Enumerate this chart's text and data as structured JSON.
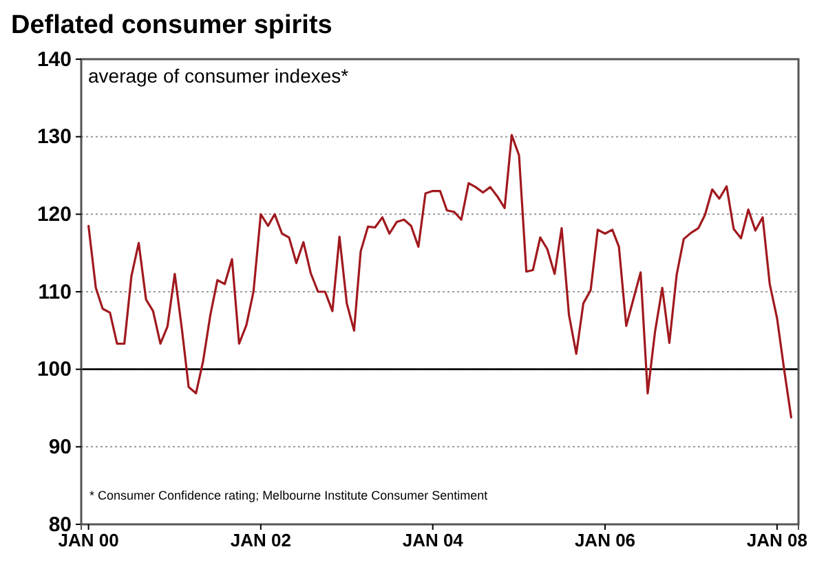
{
  "chart_data": {
    "type": "line",
    "title": "Deflated consumer spirits",
    "subtitle": "average of consumer indexes*",
    "annotations": [
      "* Consumer Confidence rating; Melbourne Institute Consumer Sentiment"
    ],
    "x": [
      "2000-01",
      "2000-02",
      "2000-03",
      "2000-04",
      "2000-05",
      "2000-06",
      "2000-07",
      "2000-08",
      "2000-09",
      "2000-10",
      "2000-11",
      "2000-12",
      "2001-01",
      "2001-02",
      "2001-03",
      "2001-04",
      "2001-05",
      "2001-06",
      "2001-07",
      "2001-08",
      "2001-09",
      "2001-10",
      "2001-11",
      "2001-12",
      "2002-01",
      "2002-02",
      "2002-03",
      "2002-04",
      "2002-05",
      "2002-06",
      "2002-07",
      "2002-08",
      "2002-09",
      "2002-10",
      "2002-11",
      "2002-12",
      "2003-01",
      "2003-02",
      "2003-03",
      "2003-04",
      "2003-05",
      "2003-06",
      "2003-07",
      "2003-08",
      "2003-09",
      "2003-10",
      "2003-11",
      "2003-12",
      "2004-01",
      "2004-02",
      "2004-03",
      "2004-04",
      "2004-05",
      "2004-06",
      "2004-07",
      "2004-08",
      "2004-09",
      "2004-10",
      "2004-11",
      "2004-12",
      "2005-01",
      "2005-02",
      "2005-03",
      "2005-04",
      "2005-05",
      "2005-06",
      "2005-07",
      "2005-08",
      "2005-09",
      "2005-10",
      "2005-11",
      "2005-12",
      "2006-01",
      "2006-02",
      "2006-03",
      "2006-04",
      "2006-05",
      "2006-06",
      "2006-07",
      "2006-08",
      "2006-09",
      "2006-10",
      "2006-11",
      "2006-12",
      "2007-01",
      "2007-02",
      "2007-03",
      "2007-04",
      "2007-05",
      "2007-06",
      "2007-07",
      "2007-08",
      "2007-09",
      "2007-10",
      "2007-11",
      "2007-12",
      "2008-01",
      "2008-02",
      "2008-03"
    ],
    "series": [
      {
        "color": "#a0191e",
        "values": [
          118.5,
          110.5,
          107.8,
          107.3,
          103.3,
          103.3,
          112,
          116.3,
          109,
          107.5,
          103.3,
          105.5,
          112.3,
          105,
          97.7,
          96.9,
          101,
          107,
          111.5,
          111,
          114.2,
          103.3,
          105.7,
          110,
          120,
          118.5,
          120,
          117.5,
          117,
          113.7,
          116.4,
          112.4,
          110,
          110,
          107.5,
          117.1,
          108.5,
          105,
          115.2,
          118.4,
          118.3,
          119.6,
          117.5,
          119,
          119.3,
          118.5,
          115.8,
          122.7,
          123,
          123,
          120.5,
          120.3,
          119.3,
          124,
          123.5,
          122.8,
          123.5,
          122.3,
          120.8,
          130.2,
          127.6,
          112.6,
          112.8,
          117,
          115.5,
          112.3,
          118.2,
          107,
          102,
          108.5,
          110.2,
          118,
          117.5,
          118,
          115.8,
          105.6,
          109,
          112.5,
          96.9,
          104.8,
          110.5,
          103.4,
          112.2,
          116.8,
          117.6,
          118.2,
          119.9,
          123.2,
          122,
          123.6,
          118.1,
          116.9,
          120.6,
          117.9,
          119.6,
          111,
          106.6,
          99.8,
          93.8
        ]
      }
    ],
    "xlim": [
      "1999-12",
      "2008-04"
    ],
    "xticks": [
      {
        "value": "2000-01",
        "label": "JAN 00"
      },
      {
        "value": "2002-01",
        "label": "JAN 02"
      },
      {
        "value": "2004-01",
        "label": "JAN 04"
      },
      {
        "value": "2006-01",
        "label": "JAN 06"
      },
      {
        "value": "2008-01",
        "label": "JAN 08"
      }
    ],
    "ylim": [
      80,
      140
    ],
    "yticks": [
      80,
      90,
      100,
      110,
      120,
      130,
      140
    ],
    "grid": "y",
    "ref_lines": [
      {
        "axis": "y",
        "value": 100,
        "color": "#000000"
      }
    ]
  }
}
